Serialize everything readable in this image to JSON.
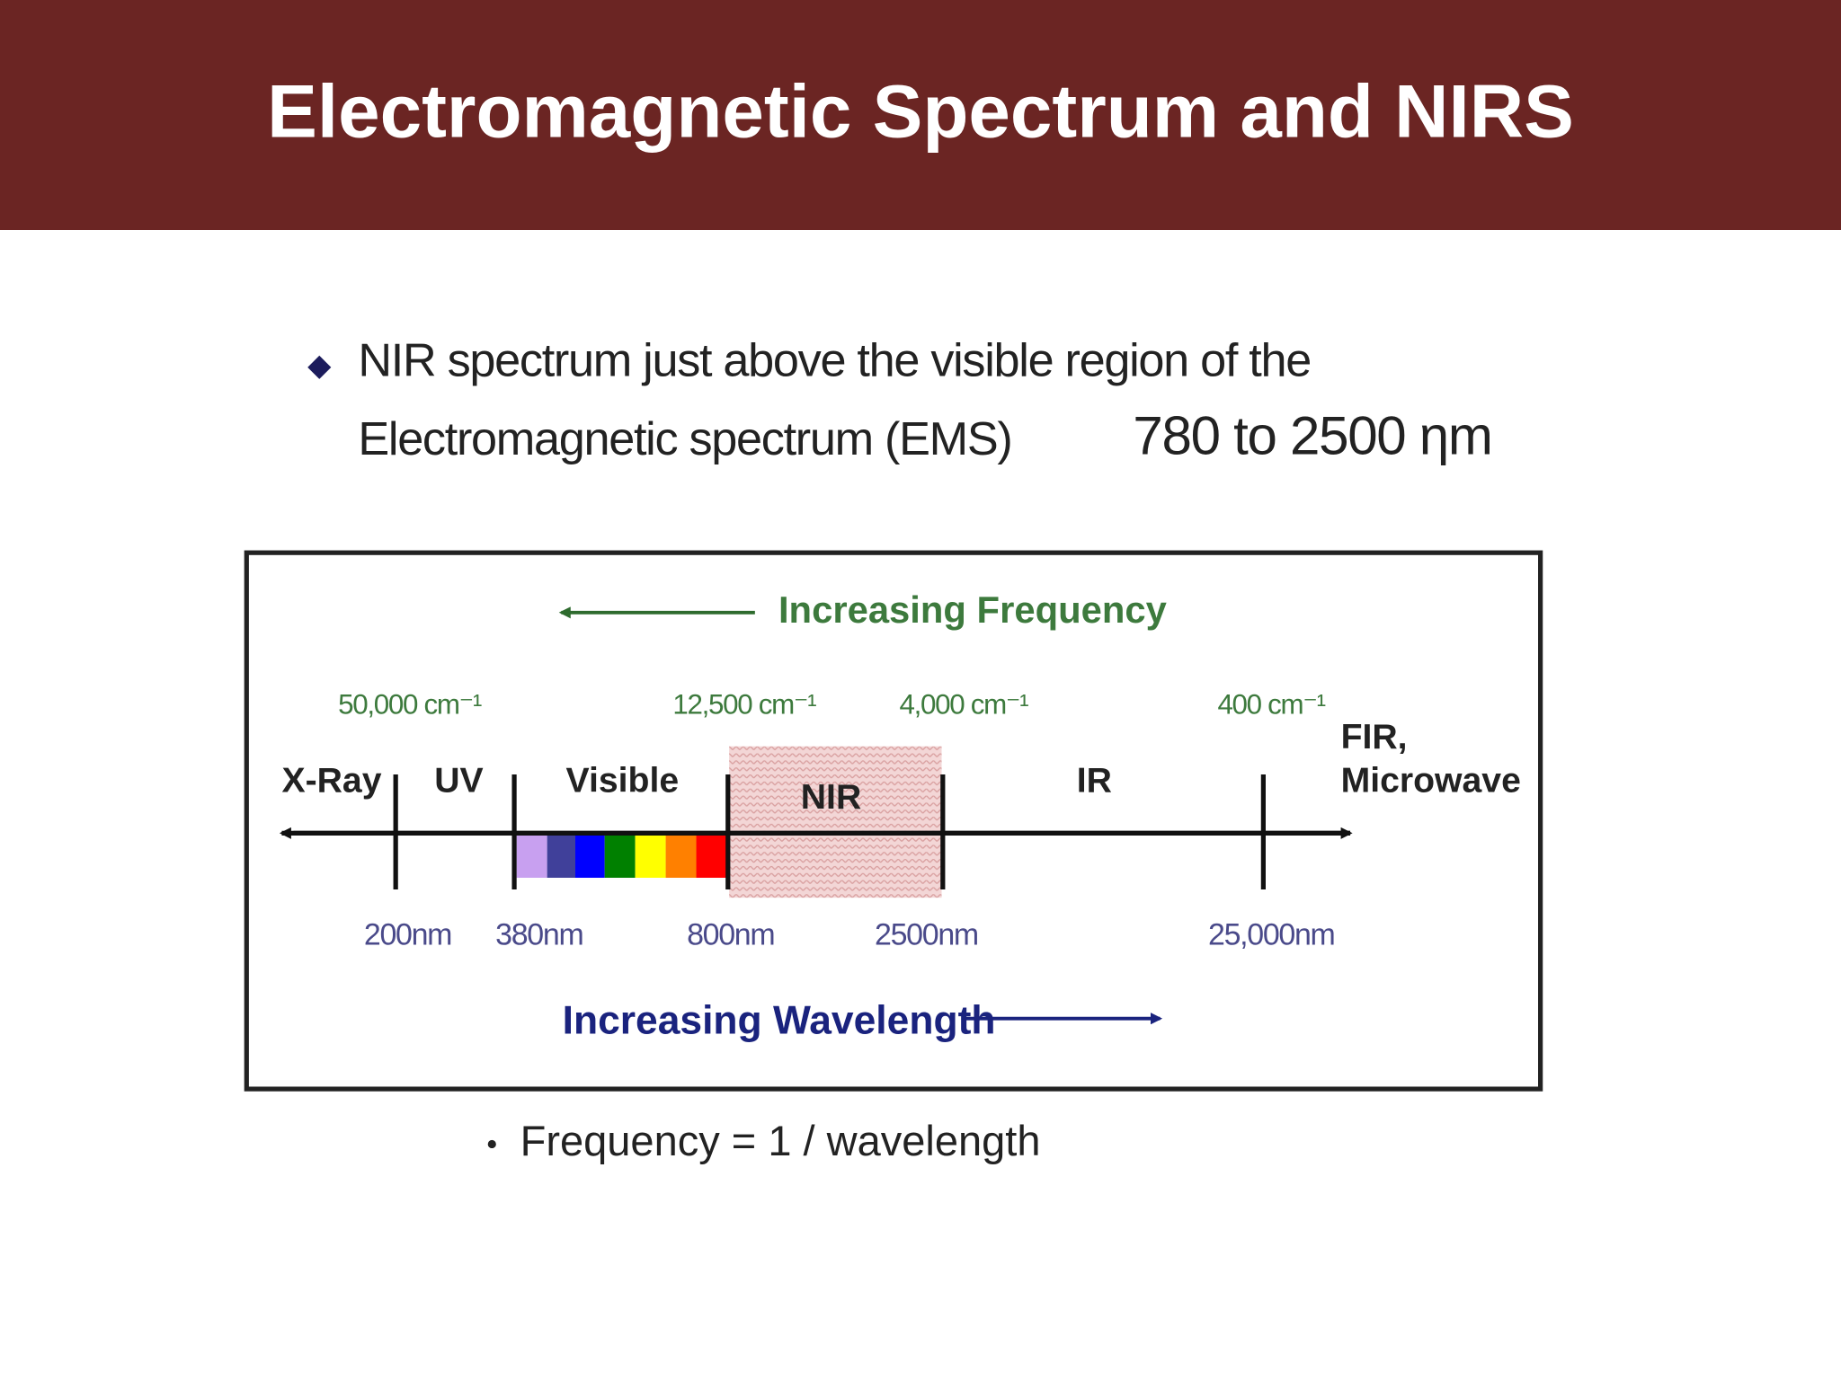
{
  "header": {
    "title": "Electromagnetic Spectrum and NIRS"
  },
  "bullet": {
    "line1": "NIR spectrum just above the visible region of the",
    "line2": "Electromagnetic spectrum (EMS)",
    "range": "780 to 2500 ηm"
  },
  "diagram": {
    "frequency_label": "Increasing Frequency",
    "wavelength_label": "Increasing Wavelength",
    "wavenumbers": [
      "50,000 cm⁻¹",
      "12,500 cm⁻¹",
      "4,000 cm⁻¹",
      "400 cm⁻¹"
    ],
    "regions": [
      "X-Ray",
      "UV",
      "Visible",
      "NIR",
      "IR",
      "FIR,",
      "Microwave"
    ],
    "wavelengths": [
      "200nm",
      "380nm",
      "800nm",
      "2500nm",
      "25,000nm"
    ]
  },
  "note": "Frequency = 1 / wavelength"
}
